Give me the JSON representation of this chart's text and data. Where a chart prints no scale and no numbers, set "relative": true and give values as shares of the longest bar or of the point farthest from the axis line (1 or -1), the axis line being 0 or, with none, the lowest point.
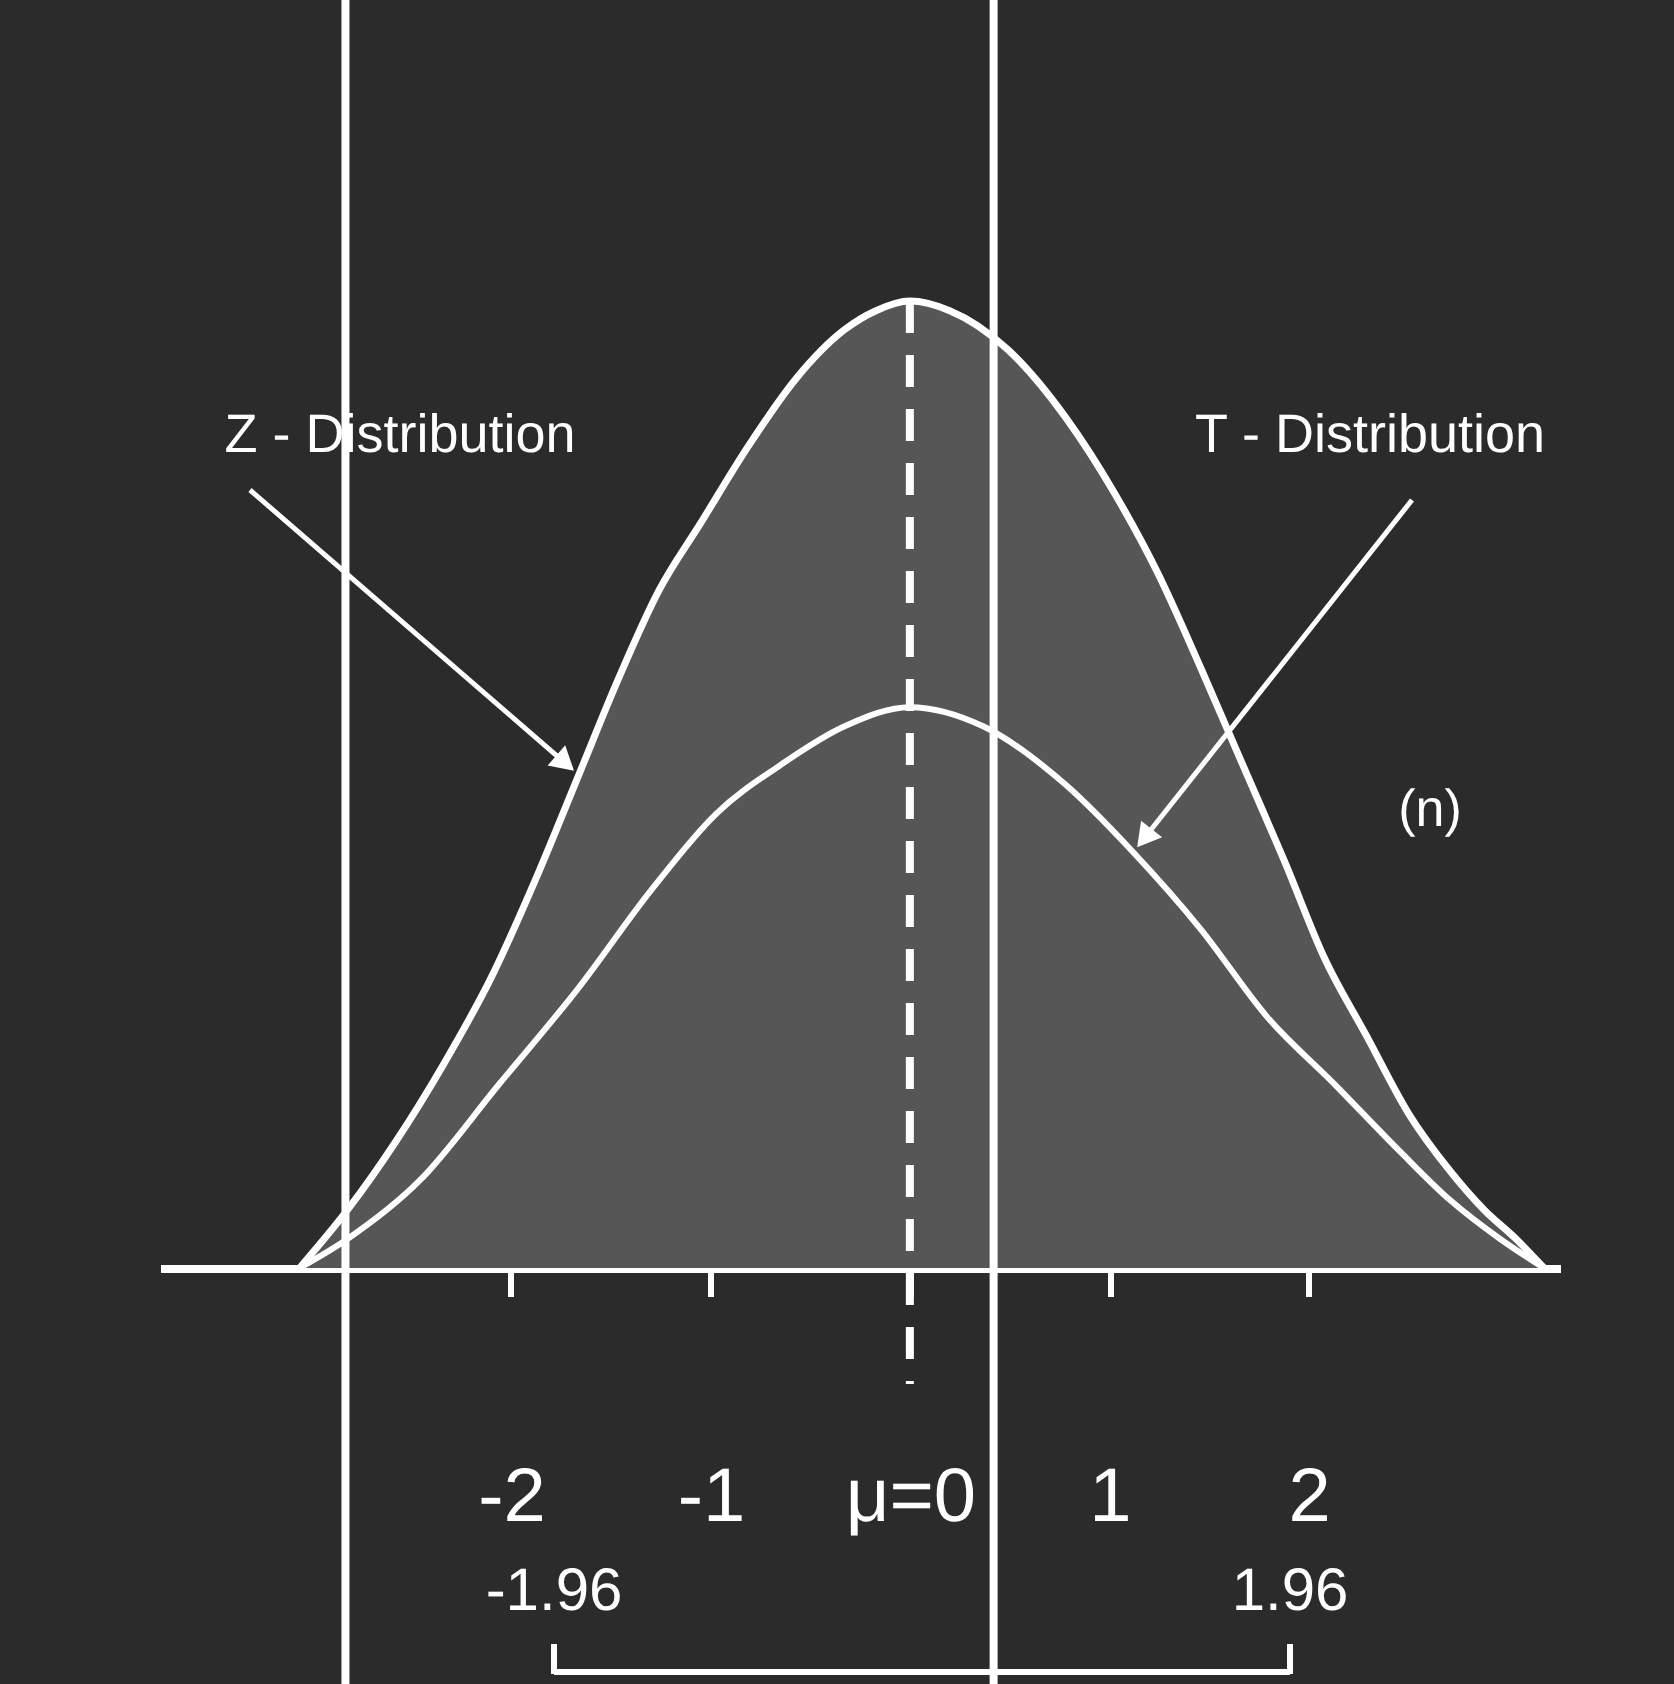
{
  "chart_data": {
    "type": "line",
    "relative": true,
    "xlim": [
      -3.76,
      3.26
    ],
    "xticks": [
      -2,
      -1,
      {
        "value": 0,
        "label": "μ=0"
      },
      1,
      2
    ],
    "series": [
      {
        "name": "Z - Distribution",
        "type": "area",
        "color": "#565656",
        "x": [
          -3.06,
          -2.82,
          -2.58,
          -2.34,
          -2.1,
          -1.86,
          -1.66,
          -1.46,
          -1.26,
          -1.05,
          -0.81,
          -0.57,
          -0.33,
          -0.17,
          0,
          0.2,
          0.49,
          0.78,
          1.03,
          1.24,
          1.46,
          1.67,
          1.88,
          2.08,
          2.29,
          2.5,
          2.71,
          2.88,
          3.04,
          3.18
        ],
        "values": [
          0,
          0.06,
          0.13,
          0.21,
          0.3,
          0.41,
          0.51,
          0.61,
          0.7,
          0.77,
          0.85,
          0.92,
          0.97,
          0.99,
          1,
          0.99,
          0.95,
          0.88,
          0.8,
          0.72,
          0.62,
          0.52,
          0.42,
          0.32,
          0.24,
          0.16,
          0.1,
          0.06,
          0.03,
          0
        ]
      },
      {
        "name": "T - Distribution",
        "color": "#ffffff",
        "x": [
          -3.06,
          -2.82,
          -2.46,
          -2.06,
          -1.66,
          -1.3,
          -0.97,
          -0.65,
          -0.33,
          0,
          0.37,
          0.78,
          1.12,
          1.46,
          1.79,
          2.13,
          2.46,
          2.71,
          2.96,
          3.18
        ],
        "values": [
          0,
          0.03,
          0.09,
          0.19,
          0.29,
          0.39,
          0.47,
          0.52,
          0.56,
          0.58,
          0.56,
          0.5,
          0.43,
          0.35,
          0.26,
          0.19,
          0.12,
          0.07,
          0.03,
          0
        ]
      }
    ],
    "ref_lines": [
      {
        "axis": "x",
        "value": 0,
        "line_style": "dashed"
      },
      {
        "axis": "x",
        "value": -2.83
      },
      {
        "axis": "x",
        "value": 0.42
      }
    ],
    "annotations": [
      "(n)",
      "-1.96",
      "1.96"
    ]
  }
}
